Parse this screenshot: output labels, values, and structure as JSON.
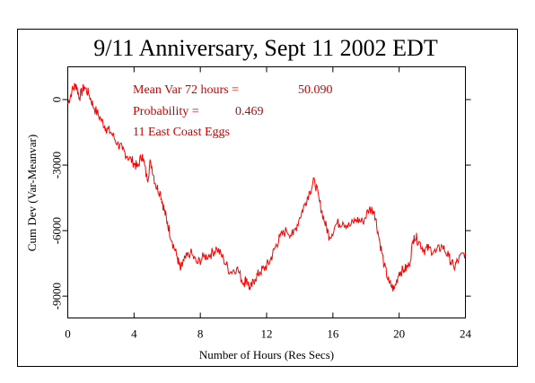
{
  "colors": {
    "series": "#ff0000",
    "annotation": "#cc0000",
    "axis": "#000000"
  },
  "chart_data": {
    "type": "line",
    "title": "9/11 Anniversary, Sept 11 2002 EDT",
    "xlabel": "Number of Hours (Res Secs)",
    "ylabel": "Cum Dev (Var-Meanvar)",
    "xlim": [
      0,
      24
    ],
    "ylim": [
      -10000,
      1500
    ],
    "xticks": [
      0,
      4,
      8,
      12,
      16,
      20,
      24
    ],
    "xtick_labels": [
      "0",
      "4",
      "8",
      "12",
      "16",
      "20",
      "24"
    ],
    "yticks": [
      0,
      -3000,
      -6000,
      -9000
    ],
    "ytick_labels": [
      "0",
      "-3000",
      "-6000",
      "-9000"
    ],
    "grid": false,
    "annotations": [
      {
        "text": "Mean Var 72 hours =",
        "value": "50.090"
      },
      {
        "text": "Probability =",
        "value": "0.469"
      },
      {
        "text": "11 East Coast Eggs",
        "value": ""
      }
    ],
    "series": [
      {
        "color": "#ff0000",
        "x": [
          0,
          0.25,
          0.5,
          0.7,
          1.0,
          1.3,
          1.6,
          2.0,
          2.3,
          2.6,
          3.0,
          3.3,
          3.6,
          4.0,
          4.2,
          4.5,
          4.8,
          5.0,
          5.3,
          5.6,
          5.8,
          6.0,
          6.3,
          6.6,
          6.8,
          7.0,
          7.4,
          7.8,
          8.2,
          8.6,
          9.0,
          9.4,
          9.8,
          10.2,
          10.6,
          10.8,
          11.0,
          11.3,
          11.6,
          11.9,
          12.2,
          12.5,
          12.8,
          13.2,
          13.6,
          14.0,
          14.3,
          14.6,
          14.9,
          15.2,
          15.5,
          15.8,
          16.2,
          16.6,
          17.0,
          17.4,
          17.8,
          18.2,
          18.5,
          18.8,
          19.1,
          19.4,
          19.7,
          20.0,
          20.3,
          20.6,
          20.9,
          21.2,
          21.5,
          21.8,
          22.2,
          22.6,
          23.0,
          23.3,
          23.6,
          24.0
        ],
        "y": [
          -200,
          400,
          700,
          100,
          600,
          200,
          -400,
          -900,
          -1300,
          -1500,
          -2000,
          -2300,
          -2600,
          -2900,
          -3100,
          -2500,
          -3700,
          -2800,
          -3900,
          -4300,
          -5000,
          -5600,
          -6500,
          -7200,
          -7800,
          -7400,
          -7000,
          -7500,
          -7200,
          -7100,
          -6800,
          -7300,
          -7900,
          -7700,
          -8400,
          -8200,
          -8700,
          -8200,
          -7900,
          -7700,
          -7400,
          -6800,
          -6300,
          -6000,
          -6200,
          -5400,
          -4800,
          -4200,
          -3700,
          -4700,
          -5600,
          -6300,
          -5700,
          -5600,
          -5800,
          -5500,
          -5600,
          -5000,
          -5100,
          -6400,
          -7600,
          -8400,
          -8700,
          -7900,
          -7800,
          -7600,
          -6200,
          -6500,
          -6900,
          -6800,
          -7000,
          -6700,
          -7200,
          -7700,
          -7300,
          -7000
        ]
      }
    ]
  }
}
